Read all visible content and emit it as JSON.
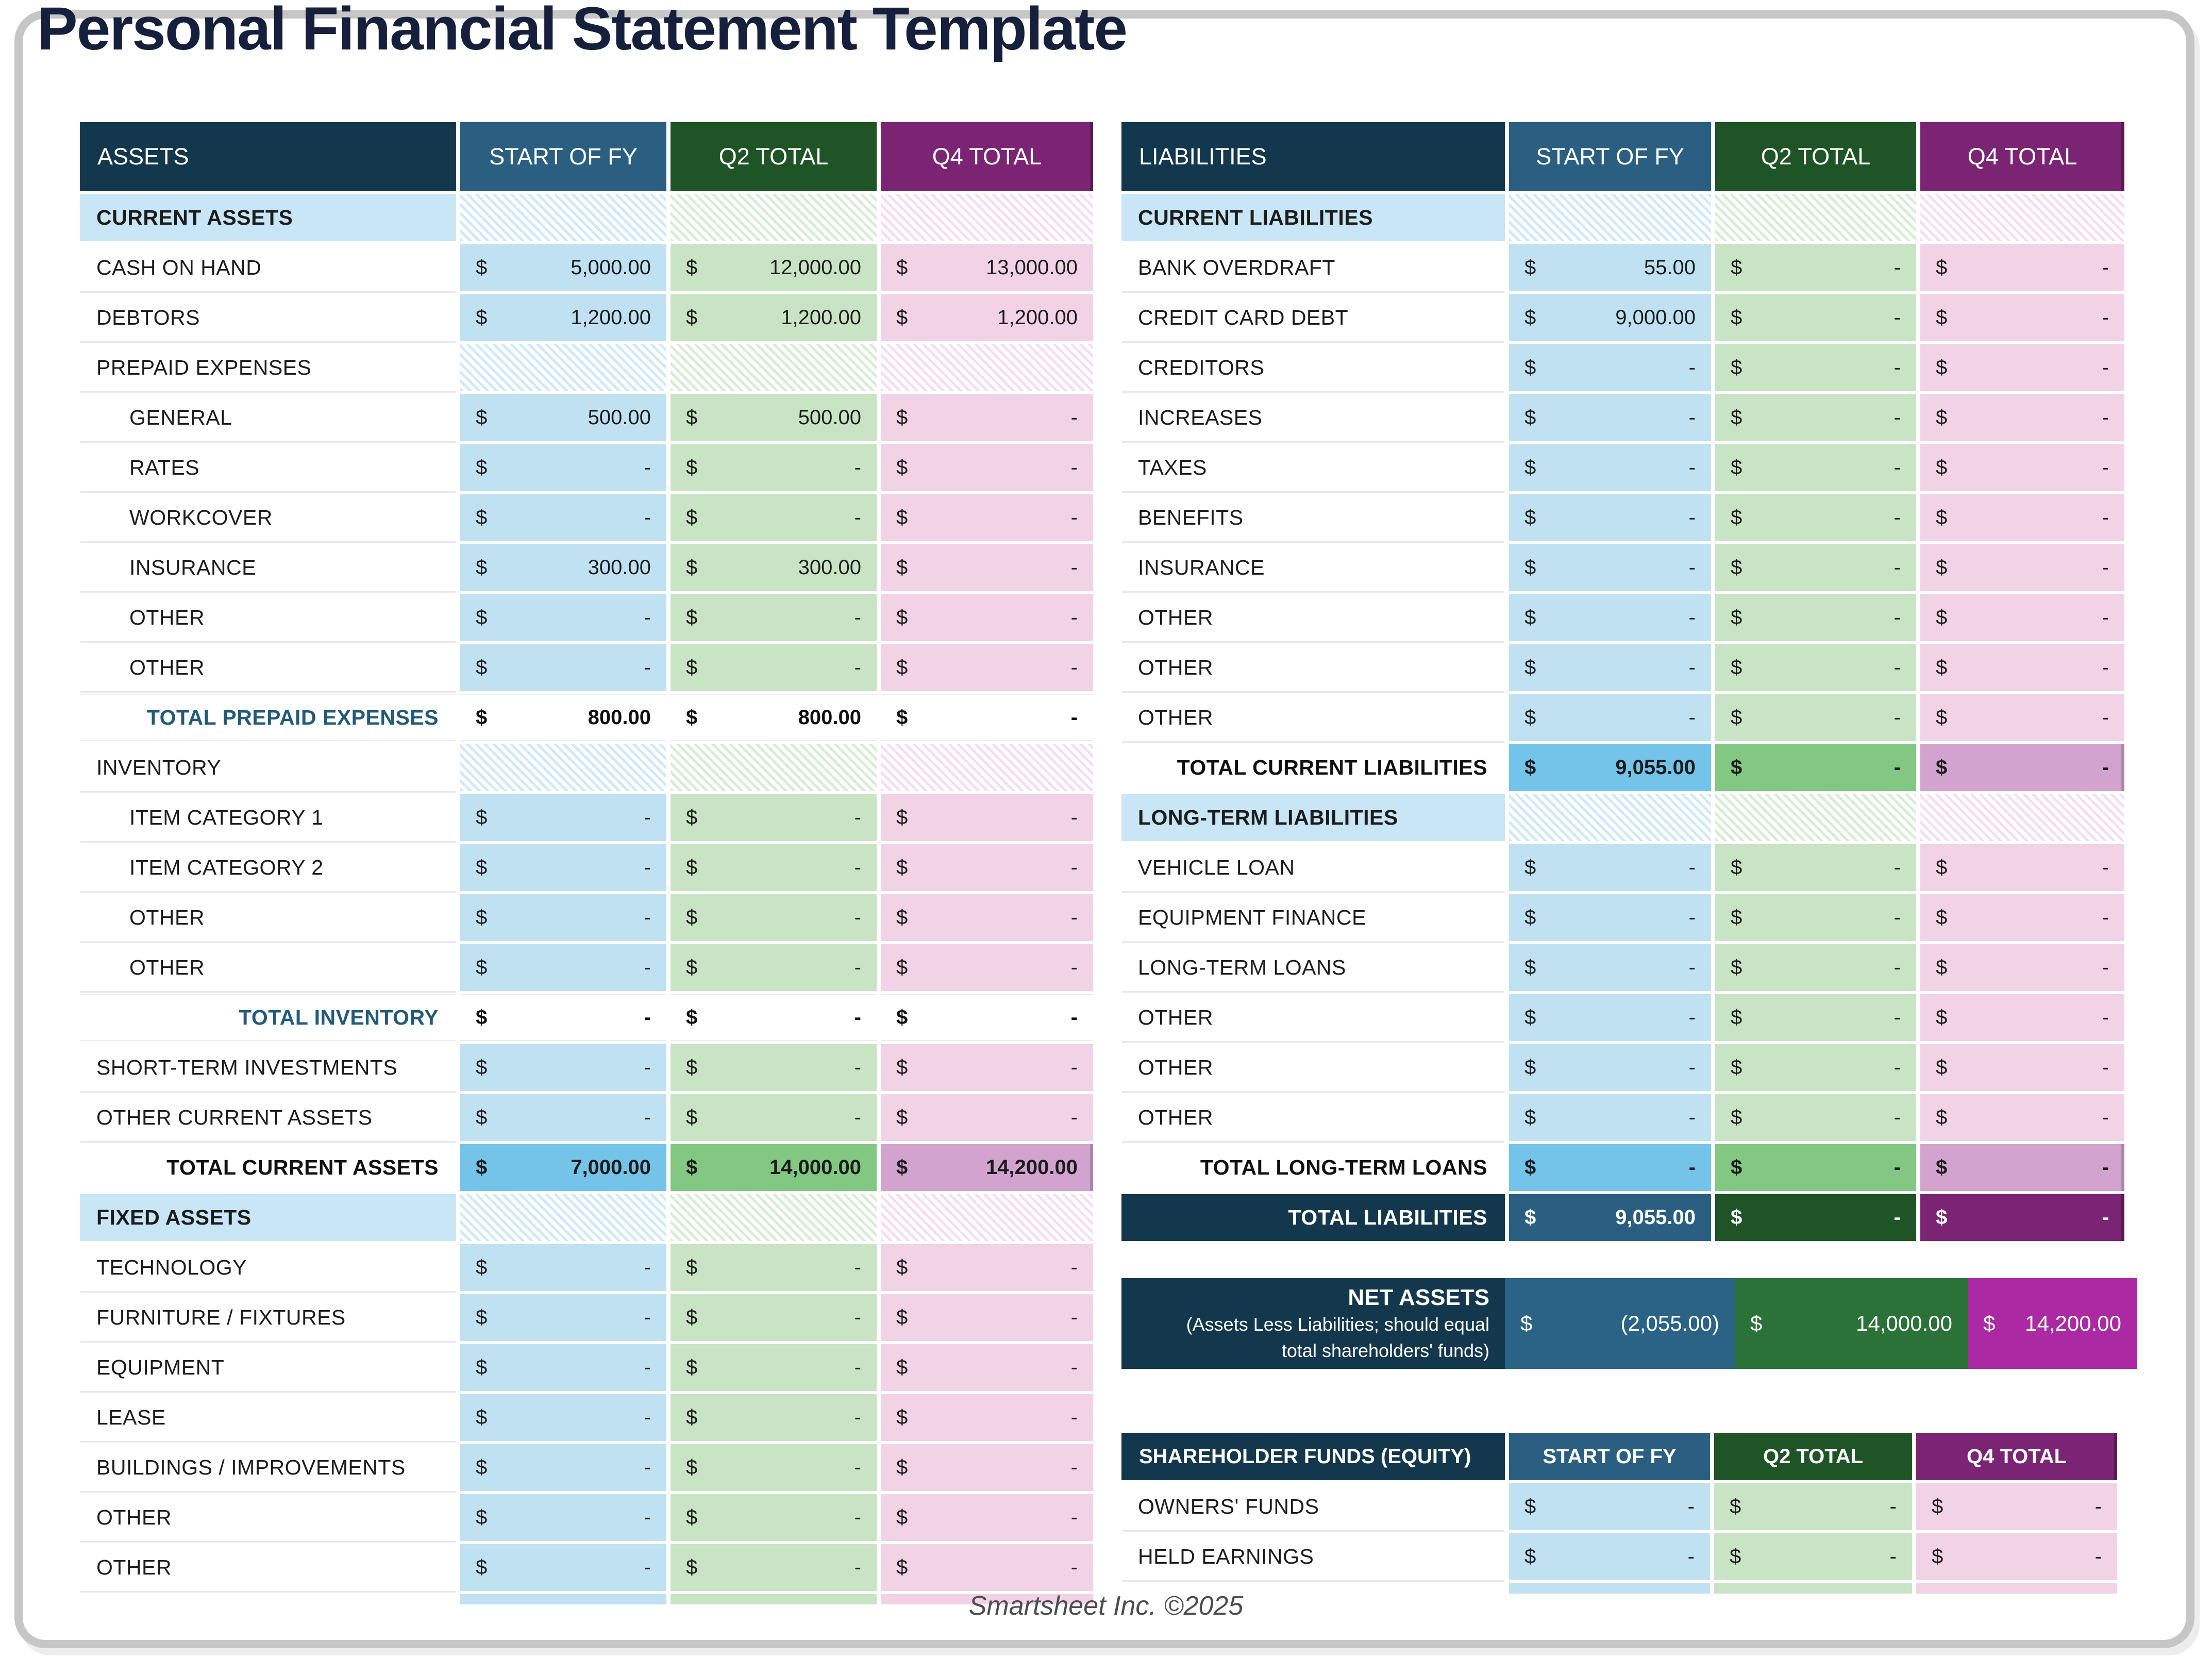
{
  "title": "Personal Financial Statement Template",
  "footer": "Smartsheet Inc. ©2025",
  "currency": "$",
  "colors": {
    "header_navy": "#13384d",
    "header_steel_blue": "#2a5f81",
    "header_dark_green": "#1f5426",
    "header_purple": "#7c2474",
    "section_light_blue": "#c8e6f5",
    "cell_light_blue": "#c0e1f2",
    "cell_light_green": "#c9e4c4",
    "cell_light_pink": "#f1d3e5",
    "total_blue": "#74c3e9",
    "total_green": "#82c782",
    "total_pink": "#d2a3ce",
    "net_assets_blue": "#2a6386",
    "net_assets_green": "#2a7238",
    "net_assets_magenta": "#ab29a2",
    "title_navy": "#16203c",
    "card_border_gray": "#c6c6c6"
  },
  "assets": {
    "header": {
      "label": "ASSETS",
      "c1": "START OF FY",
      "c2": "Q2 TOTAL",
      "c3": "Q4 TOTAL"
    },
    "rows": [
      {
        "type": "section",
        "label": "CURRENT ASSETS"
      },
      {
        "type": "data",
        "label": "CASH ON HAND",
        "v1": "5,000.00",
        "v2": "12,000.00",
        "v3": "13,000.00"
      },
      {
        "type": "data",
        "label": "DEBTORS",
        "v1": "1,200.00",
        "v2": "1,200.00",
        "v3": "1,200.00"
      },
      {
        "type": "subsection",
        "label": "PREPAID EXPENSES"
      },
      {
        "type": "data",
        "indent": true,
        "label": "GENERAL",
        "v1": "500.00",
        "v2": "500.00",
        "v3": "-"
      },
      {
        "type": "data",
        "indent": true,
        "label": "RATES",
        "v1": "-",
        "v2": "-",
        "v3": "-"
      },
      {
        "type": "data",
        "indent": true,
        "label": "WORKCOVER",
        "v1": "-",
        "v2": "-",
        "v3": "-"
      },
      {
        "type": "data",
        "indent": true,
        "label": "INSURANCE",
        "v1": "300.00",
        "v2": "300.00",
        "v3": "-"
      },
      {
        "type": "data",
        "indent": true,
        "label": "OTHER",
        "v1": "-",
        "v2": "-",
        "v3": "-"
      },
      {
        "type": "data",
        "indent": true,
        "label": "OTHER",
        "v1": "-",
        "v2": "-",
        "v3": "-"
      },
      {
        "type": "total-plain",
        "label": "TOTAL PREPAID EXPENSES",
        "v1": "800.00",
        "v2": "800.00",
        "v3": "-"
      },
      {
        "type": "subsection",
        "label": "INVENTORY"
      },
      {
        "type": "data",
        "indent": true,
        "label": "ITEM CATEGORY 1",
        "v1": "-",
        "v2": "-",
        "v3": "-"
      },
      {
        "type": "data",
        "indent": true,
        "label": "ITEM CATEGORY 2",
        "v1": "-",
        "v2": "-",
        "v3": "-"
      },
      {
        "type": "data",
        "indent": true,
        "label": "OTHER",
        "v1": "-",
        "v2": "-",
        "v3": "-"
      },
      {
        "type": "data",
        "indent": true,
        "label": "OTHER",
        "v1": "-",
        "v2": "-",
        "v3": "-"
      },
      {
        "type": "total-plain",
        "label": "TOTAL INVENTORY",
        "v1": "-",
        "v2": "-",
        "v3": "-"
      },
      {
        "type": "data",
        "label": "SHORT-TERM INVESTMENTS",
        "v1": "-",
        "v2": "-",
        "v3": "-"
      },
      {
        "type": "data",
        "label": "OTHER CURRENT ASSETS",
        "v1": "-",
        "v2": "-",
        "v3": "-"
      },
      {
        "type": "total-strong",
        "label": "TOTAL CURRENT ASSETS",
        "v1": "7,000.00",
        "v2": "14,000.00",
        "v3": "14,200.00"
      },
      {
        "type": "section",
        "label": "FIXED ASSETS"
      },
      {
        "type": "data",
        "label": "TECHNOLOGY",
        "v1": "-",
        "v2": "-",
        "v3": "-"
      },
      {
        "type": "data",
        "label": "FURNITURE / FIXTURES",
        "v1": "-",
        "v2": "-",
        "v3": "-"
      },
      {
        "type": "data",
        "label": "EQUIPMENT",
        "v1": "-",
        "v2": "-",
        "v3": "-"
      },
      {
        "type": "data",
        "label": "LEASE",
        "v1": "-",
        "v2": "-",
        "v3": "-"
      },
      {
        "type": "data",
        "label": "BUILDINGS / IMPROVEMENTS",
        "v1": "-",
        "v2": "-",
        "v3": "-"
      },
      {
        "type": "data",
        "label": "OTHER",
        "v1": "-",
        "v2": "-",
        "v3": "-"
      },
      {
        "type": "data",
        "label": "OTHER",
        "v1": "-",
        "v2": "-",
        "v3": "-"
      },
      {
        "type": "partial"
      }
    ]
  },
  "liabilities": {
    "header": {
      "label": "LIABILITIES",
      "c1": "START OF FY",
      "c2": "Q2 TOTAL",
      "c3": "Q4 TOTAL"
    },
    "rows": [
      {
        "type": "section",
        "label": "CURRENT LIABILITIES"
      },
      {
        "type": "data",
        "label": "BANK OVERDRAFT",
        "v1": "55.00",
        "v2": "-",
        "v3": "-"
      },
      {
        "type": "data",
        "label": "CREDIT CARD DEBT",
        "v1": "9,000.00",
        "v2": "-",
        "v3": "-"
      },
      {
        "type": "data",
        "label": "CREDITORS",
        "v1": "-",
        "v2": "-",
        "v3": "-"
      },
      {
        "type": "data",
        "label": "INCREASES",
        "v1": "-",
        "v2": "-",
        "v3": "-"
      },
      {
        "type": "data",
        "label": "TAXES",
        "v1": "-",
        "v2": "-",
        "v3": "-"
      },
      {
        "type": "data",
        "label": "BENEFITS",
        "v1": "-",
        "v2": "-",
        "v3": "-"
      },
      {
        "type": "data",
        "label": "INSURANCE",
        "v1": "-",
        "v2": "-",
        "v3": "-"
      },
      {
        "type": "data",
        "label": "OTHER",
        "v1": "-",
        "v2": "-",
        "v3": "-"
      },
      {
        "type": "data",
        "label": "OTHER",
        "v1": "-",
        "v2": "-",
        "v3": "-"
      },
      {
        "type": "data",
        "label": "OTHER",
        "v1": "-",
        "v2": "-",
        "v3": "-"
      },
      {
        "type": "total-strong",
        "label": "TOTAL CURRENT LIABILITIES",
        "v1": "9,055.00",
        "v2": "-",
        "v3": "-"
      },
      {
        "type": "section",
        "label": "LONG-TERM LIABILITIES"
      },
      {
        "type": "data",
        "label": "VEHICLE LOAN",
        "v1": "-",
        "v2": "-",
        "v3": "-"
      },
      {
        "type": "data",
        "label": "EQUIPMENT FINANCE",
        "v1": "-",
        "v2": "-",
        "v3": "-"
      },
      {
        "type": "data",
        "label": "LONG-TERM LOANS",
        "v1": "-",
        "v2": "-",
        "v3": "-"
      },
      {
        "type": "data",
        "label": "OTHER",
        "v1": "-",
        "v2": "-",
        "v3": "-"
      },
      {
        "type": "data",
        "label": "OTHER",
        "v1": "-",
        "v2": "-",
        "v3": "-"
      },
      {
        "type": "data",
        "label": "OTHER",
        "v1": "-",
        "v2": "-",
        "v3": "-"
      },
      {
        "type": "total-strong",
        "label": "TOTAL LONG-TERM LOANS",
        "v1": "-",
        "v2": "-",
        "v3": "-"
      },
      {
        "type": "total-dark",
        "label": "TOTAL LIABILITIES",
        "v1": "9,055.00",
        "v2": "-",
        "v3": "-"
      }
    ]
  },
  "net_assets": {
    "title": "NET ASSETS",
    "subtitle_line1": "(Assets Less Liabilities; should equal",
    "subtitle_line2": "total shareholders' funds)",
    "v1": "(2,055.00)",
    "v2": "14,000.00",
    "v3": "14,200.00"
  },
  "equity": {
    "header": {
      "label": "SHAREHOLDER FUNDS (EQUITY)",
      "c1": "START OF FY",
      "c2": "Q2 TOTAL",
      "c3": "Q4 TOTAL"
    },
    "rows": [
      {
        "type": "data",
        "label": "OWNERS' FUNDS",
        "v1": "-",
        "v2": "-",
        "v3": "-"
      },
      {
        "type": "data",
        "label": "HELD EARNINGS",
        "v1": "-",
        "v2": "-",
        "v3": "-"
      },
      {
        "type": "partial"
      }
    ]
  }
}
